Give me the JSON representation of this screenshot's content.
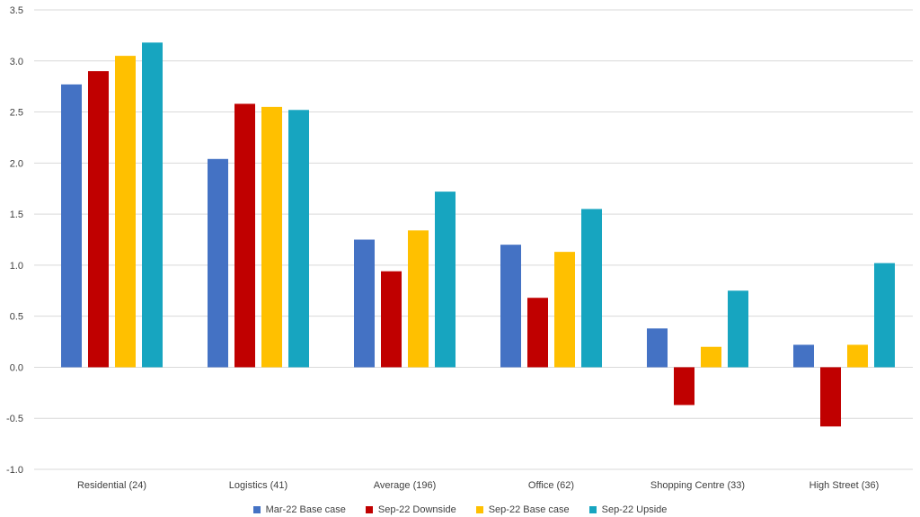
{
  "chart_data": {
    "type": "bar",
    "categories": [
      "Residential (24)",
      "Logistics (41)",
      "Average (196)",
      "Office (62)",
      "Shopping Centre (33)",
      "High Street (36)"
    ],
    "series": [
      {
        "name": "Mar-22 Base case",
        "color": "#4472C4",
        "values": [
          2.77,
          2.04,
          1.25,
          1.2,
          0.38,
          0.22
        ]
      },
      {
        "name": "Sep-22 Downside",
        "color": "#C00000",
        "values": [
          2.9,
          2.58,
          0.94,
          0.68,
          -0.37,
          -0.58
        ]
      },
      {
        "name": "Sep-22 Base case",
        "color": "#FFC000",
        "values": [
          3.05,
          2.55,
          1.34,
          1.13,
          0.2,
          0.22
        ]
      },
      {
        "name": "Sep-22 Upside",
        "color": "#17A5C0",
        "values": [
          3.18,
          2.52,
          1.72,
          1.55,
          0.75,
          1.02
        ]
      }
    ],
    "yticks": [
      "-1.0",
      "-0.5",
      "0.0",
      "0.5",
      "1.0",
      "1.5",
      "2.0",
      "2.5",
      "3.0",
      "3.5"
    ],
    "ylim": [
      -1.0,
      3.5
    ],
    "grid": true,
    "legend_position": "bottom"
  }
}
